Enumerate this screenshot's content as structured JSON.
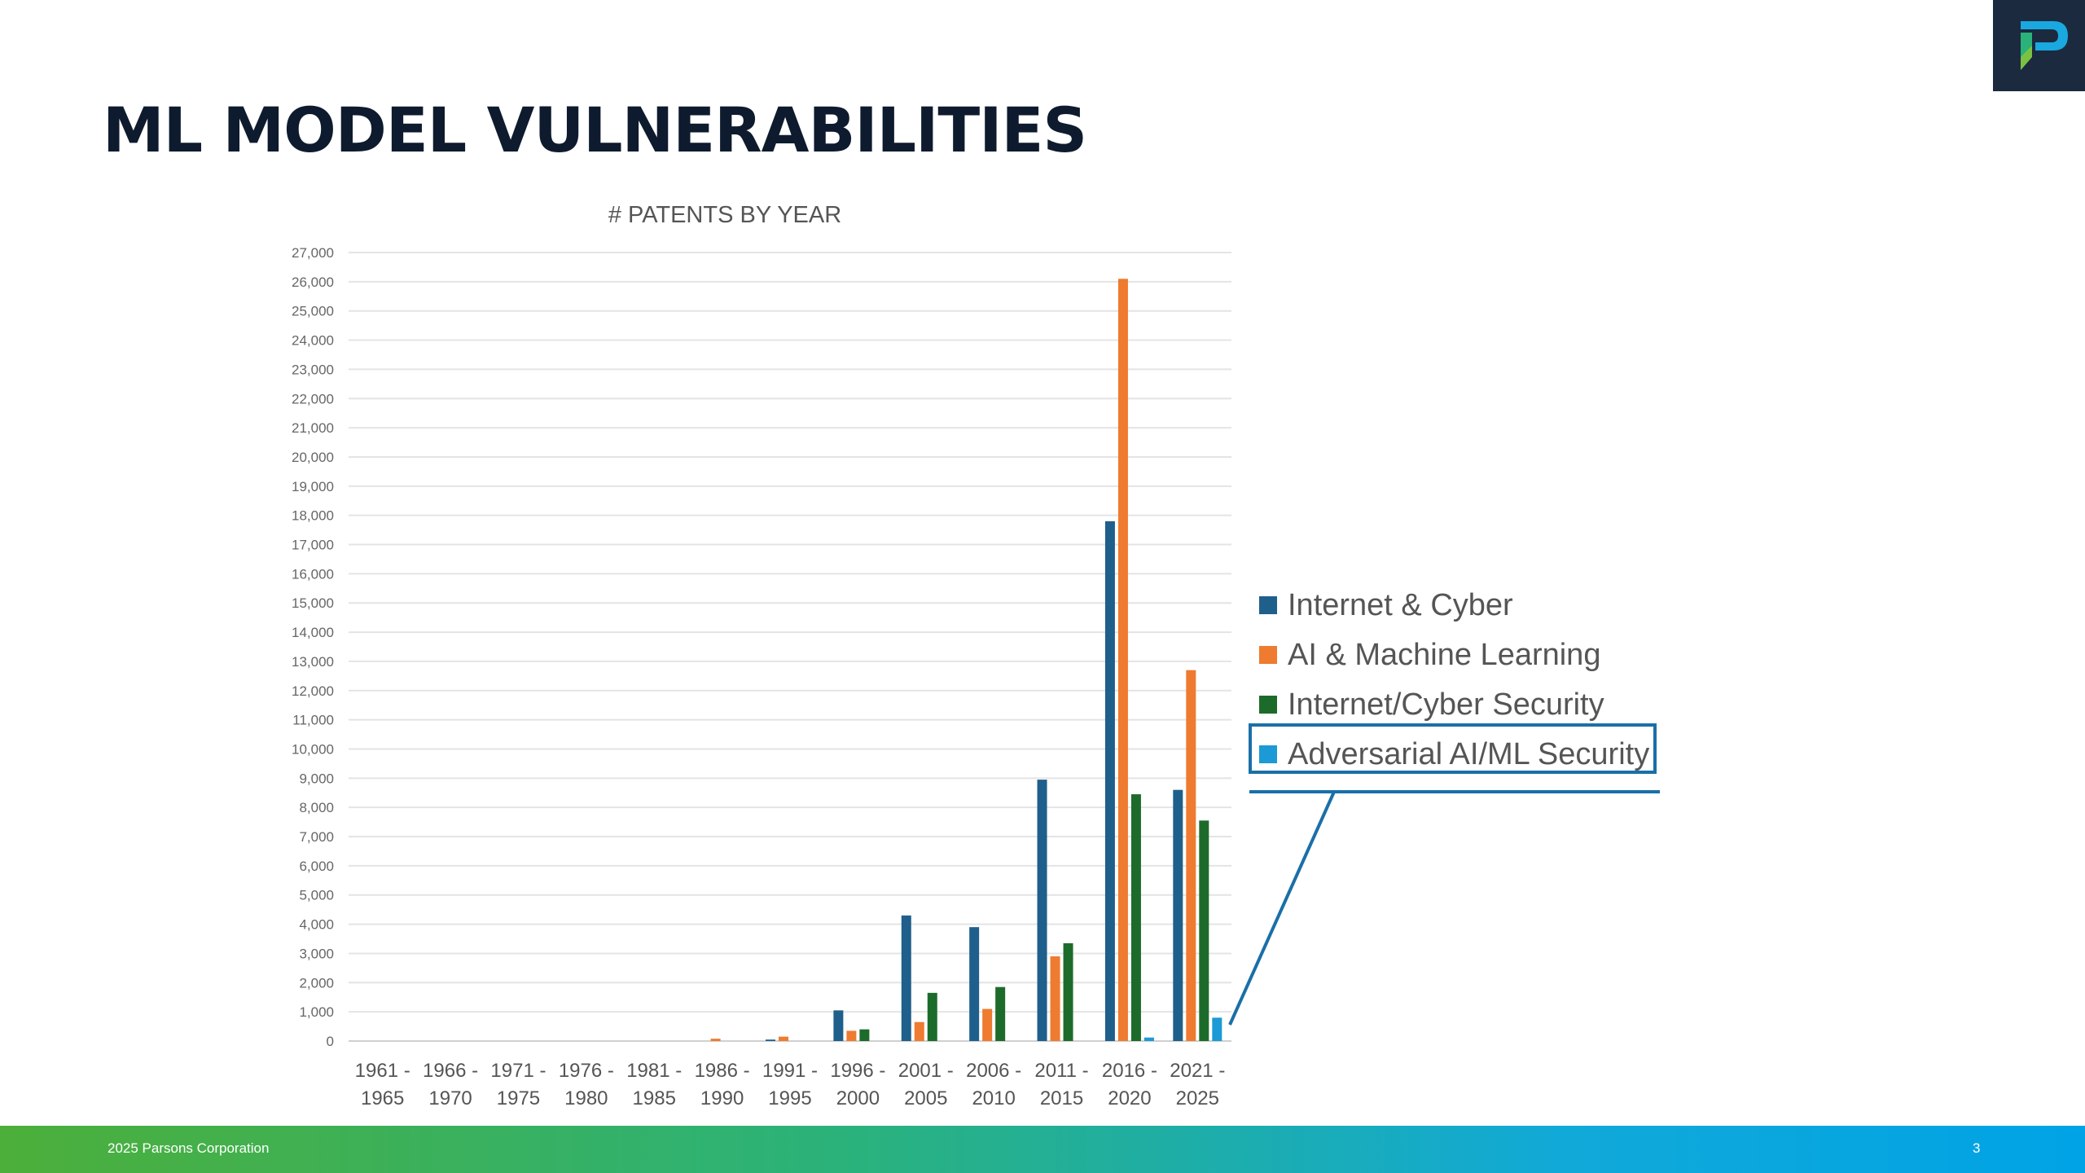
{
  "slide": {
    "title": "ML MODEL VULNERABILITIES",
    "footer_left": "2025 Parsons Corporation",
    "page_number": "3"
  },
  "logo": {
    "icon": "parsons-p-logo",
    "bg_color": "#1b2a3e"
  },
  "chart_data": {
    "type": "bar",
    "title": "# PATENTS BY YEAR",
    "xlabel": "",
    "ylabel": "",
    "ylim": [
      0,
      27000
    ],
    "y_ticks": [
      "0",
      "1,000",
      "2,000",
      "3,000",
      "4,000",
      "5,000",
      "6,000",
      "7,000",
      "8,000",
      "9,000",
      "10,000",
      "11,000",
      "12,000",
      "13,000",
      "14,000",
      "15,000",
      "16,000",
      "17,000",
      "18,000",
      "19,000",
      "20,000",
      "21,000",
      "22,000",
      "23,000",
      "24,000",
      "25,000",
      "26,000",
      "27,000"
    ],
    "grid": true,
    "legend_position": "right",
    "categories": [
      [
        "1961 -",
        "1965"
      ],
      [
        "1966 -",
        "1970"
      ],
      [
        "1971 -",
        "1975"
      ],
      [
        "1976 -",
        "1980"
      ],
      [
        "1981 -",
        "1985"
      ],
      [
        "1986 -",
        "1990"
      ],
      [
        "1991 -",
        "1995"
      ],
      [
        "1996 -",
        "2000"
      ],
      [
        "2001 -",
        "2005"
      ],
      [
        "2006 -",
        "2010"
      ],
      [
        "2011 -",
        "2015"
      ],
      [
        "2016 -",
        "2020"
      ],
      [
        "2021 -",
        "2025"
      ]
    ],
    "series": [
      {
        "name": "Internet & Cyber",
        "color": "#1f5f8b",
        "values": [
          0,
          0,
          0,
          0,
          0,
          0,
          50,
          1050,
          4300,
          3900,
          8950,
          17800,
          8600
        ]
      },
      {
        "name": "AI & Machine Learning",
        "color": "#ee7b30",
        "values": [
          0,
          0,
          0,
          0,
          0,
          80,
          150,
          350,
          650,
          1100,
          2900,
          26100,
          12700
        ]
      },
      {
        "name": "Internet/Cyber Security",
        "color": "#1d6b2b",
        "values": [
          0,
          0,
          0,
          0,
          0,
          0,
          0,
          400,
          1650,
          1850,
          3350,
          8450,
          7550
        ]
      },
      {
        "name": "Adversarial AI/ML Security",
        "color": "#1b9ad6",
        "values": [
          0,
          0,
          0,
          0,
          0,
          0,
          0,
          0,
          0,
          0,
          0,
          120,
          800
        ]
      }
    ],
    "highlighted_series": "Adversarial AI/ML Security"
  }
}
